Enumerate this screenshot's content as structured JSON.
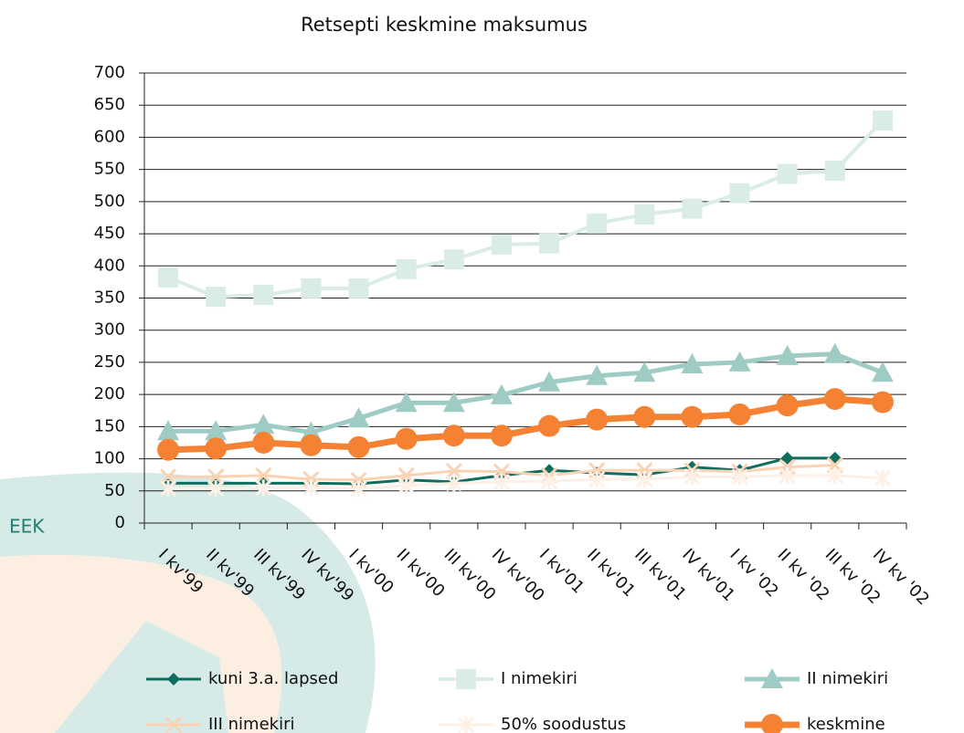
{
  "chart_data": {
    "type": "line",
    "title": "Retsepti keskmine maksumus",
    "y_label": "EEK",
    "categories": [
      "I kv'99",
      "II kv'99",
      "III kv'99",
      "IV kv'99",
      "I kv'00",
      "II kv'00",
      "III kv'00",
      "IV kv'00",
      "I kv'01",
      "II kv'01",
      "III kv'01",
      "IV kv'01",
      "I kv '02",
      "II kv '02",
      "III kv '02",
      "IV kv '02"
    ],
    "ylim": [
      0,
      700
    ],
    "yticks": [
      0,
      50,
      100,
      150,
      200,
      250,
      300,
      350,
      400,
      450,
      500,
      550,
      600,
      650,
      700
    ],
    "grid": true,
    "series": [
      {
        "name": "kuni 3.a. lapsed",
        "color": "#0f6e5e",
        "marker": "diamond",
        "values": [
          62,
          62,
          62,
          62,
          61,
          67,
          64,
          74,
          82,
          78,
          75,
          87,
          82,
          101,
          101,
          null
        ]
      },
      {
        "name": "I nimekiri",
        "color": "#d9ece8",
        "marker": "square",
        "values": [
          382,
          352,
          355,
          365,
          365,
          395,
          410,
          433,
          435,
          466,
          480,
          489,
          513,
          543,
          548,
          626
        ]
      },
      {
        "name": "II nimekiri",
        "color": "#9ecbc3",
        "marker": "triangle",
        "values": [
          143,
          143,
          153,
          141,
          163,
          187,
          187,
          199,
          219,
          229,
          234,
          247,
          250,
          260,
          263,
          234
        ]
      },
      {
        "name": "III nimekiri",
        "color": "#f9d3b4",
        "marker": "x",
        "values": [
          72,
          72,
          74,
          68,
          67,
          74,
          81,
          80,
          74,
          82,
          82,
          82,
          80,
          87,
          90,
          null
        ]
      },
      {
        "name": "50% soodustus",
        "color": "#fdf0e6",
        "marker": "star",
        "values": [
          54,
          54,
          55,
          55,
          53,
          58,
          62,
          64,
          65,
          68,
          68,
          72,
          72,
          74,
          74,
          70
        ]
      },
      {
        "name": "keskmine",
        "color": "#f58233",
        "marker": "circle",
        "values": [
          114,
          116,
          125,
          121,
          118,
          131,
          136,
          136,
          151,
          161,
          165,
          165,
          169,
          183,
          193,
          188
        ]
      }
    ]
  }
}
